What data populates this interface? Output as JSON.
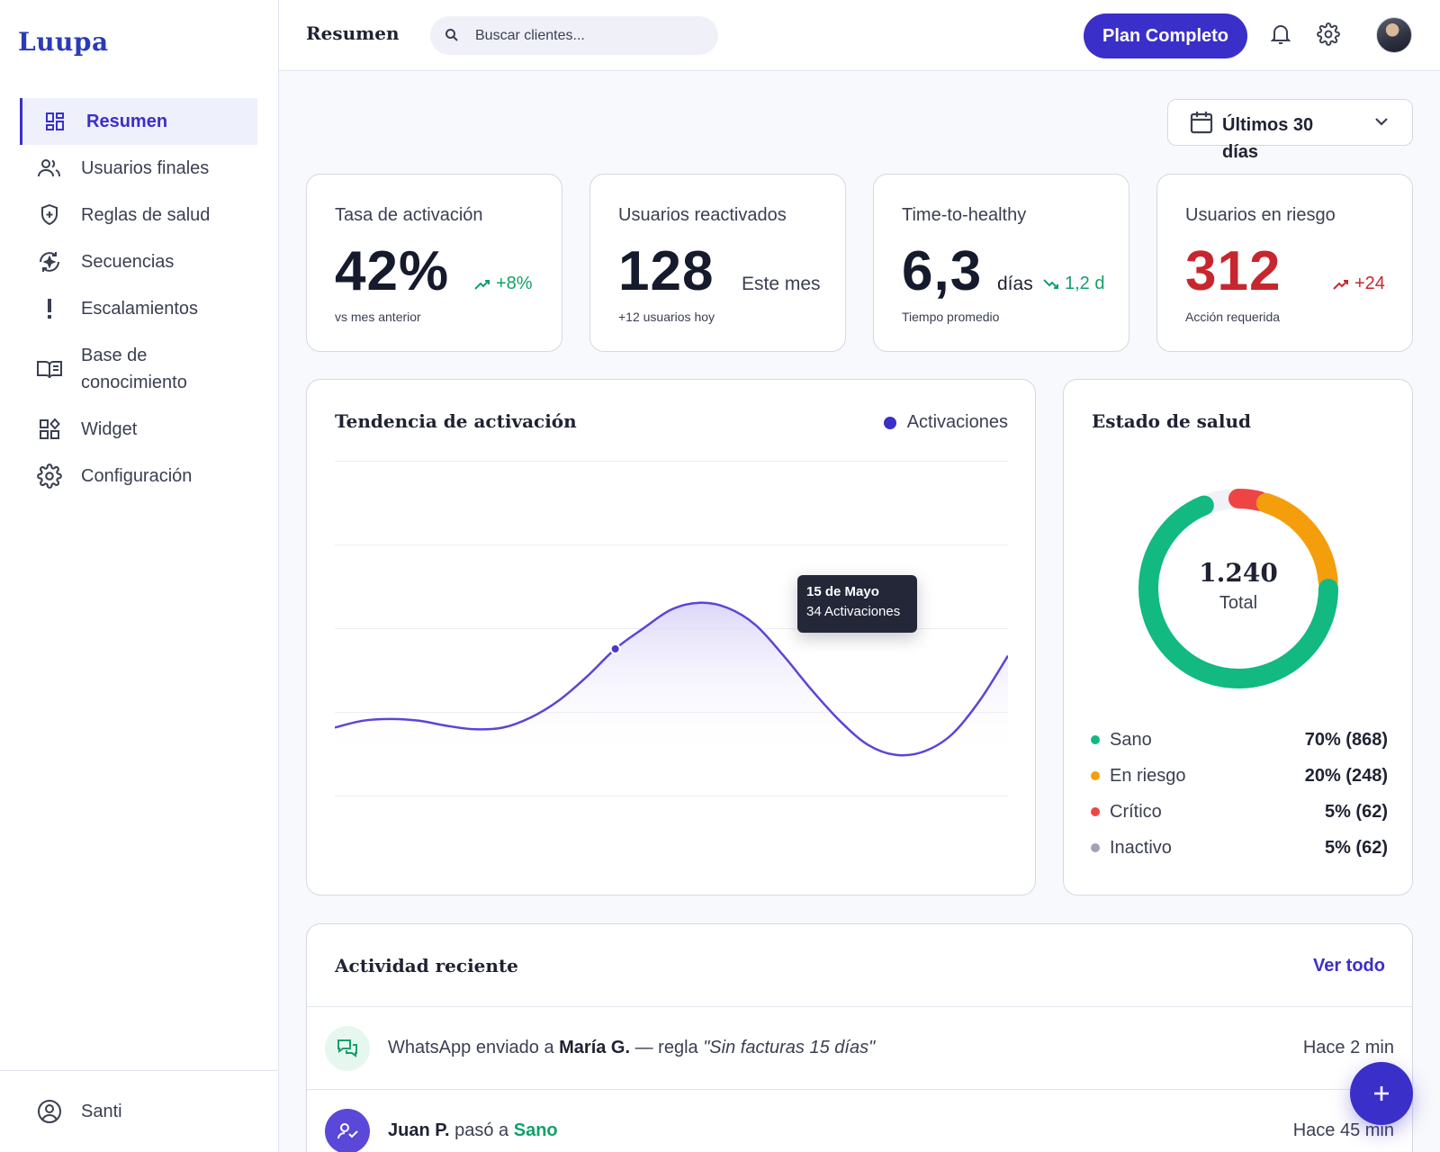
{
  "app": {
    "logo": "Luupa"
  },
  "sidebar": {
    "items": [
      {
        "label": "Resumen",
        "icon": "dashboard-icon",
        "active": true
      },
      {
        "label": "Usuarios finales",
        "icon": "users-icon"
      },
      {
        "label": "Reglas de salud",
        "icon": "shield-icon"
      },
      {
        "label": "Secuencias",
        "icon": "sequence-icon"
      },
      {
        "label": "Escalamientos",
        "icon": "exclamation-icon"
      },
      {
        "label": "Base de conocimiento",
        "icon": "book-icon"
      },
      {
        "label": "Widget",
        "icon": "widget-icon"
      },
      {
        "label": "Configuración",
        "icon": "gear-icon"
      }
    ],
    "user": {
      "name": "Santi",
      "icon": "user-circle-icon"
    }
  },
  "header": {
    "title": "Resumen",
    "search_placeholder": "Buscar clientes...",
    "plan_button": "Plan Completo",
    "icons": [
      "bell-icon",
      "gear-icon",
      "avatar"
    ]
  },
  "date_filter": {
    "label": "Últimos 30 días"
  },
  "kpis": [
    {
      "title": "Tasa de activación",
      "value": "42%",
      "delta": "+8%",
      "delta_trend": "up",
      "sub": "vs mes anterior"
    },
    {
      "title": "Usuarios reactivados",
      "value": "128",
      "unit": "Este mes",
      "sub": "+12 usuarios hoy"
    },
    {
      "title": "Time-to-healthy",
      "value": "6,3",
      "unit": "días",
      "delta": "1,2 d",
      "delta_trend": "down",
      "sub": "Tiempo promedio"
    },
    {
      "title": "Usuarios en riesgo",
      "value": "312",
      "delta": "+24",
      "delta_trend": "up",
      "sub": "Acción requerida"
    }
  ],
  "trend": {
    "title": "Tendencia de activación",
    "legend": "Activaciones",
    "tooltip": {
      "date": "15 de Mayo",
      "value": "34 Activaciones"
    }
  },
  "chart_data": {
    "type": "area",
    "title": "Tendencia de activación",
    "series": [
      {
        "name": "Activaciones",
        "values": [
          0.22,
          0.24,
          0.245,
          0.24,
          0.225,
          0.215,
          0.22,
          0.25,
          0.3,
          0.37,
          0.45,
          0.51,
          0.565,
          0.585,
          0.57,
          0.52,
          0.43,
          0.33,
          0.24,
          0.17,
          0.14,
          0.15,
          0.2,
          0.3,
          0.43
        ]
      }
    ],
    "y_relative": true,
    "highlight": {
      "index": 10,
      "date": "15 de Mayo",
      "value": 34
    },
    "grid": true,
    "legend_position": "top-right",
    "colors": {
      "line": "#5b45d6",
      "fill": "#e9e6fb"
    }
  },
  "health": {
    "title": "Estado de salud",
    "total": "1.240",
    "total_label": "Total",
    "segments": [
      {
        "label": "Sano",
        "value": "70% (868)",
        "pct": 70,
        "color": "#12b981"
      },
      {
        "label": "En riesgo",
        "value": "20% (248)",
        "pct": 20,
        "color": "#f59e0b"
      },
      {
        "label": "Crítico",
        "value": "5% (62)",
        "pct": 5,
        "color": "#ef4444"
      },
      {
        "label": "Inactivo",
        "value": "5% (62)",
        "pct": 5,
        "color": "#a1a3b3"
      }
    ]
  },
  "activity": {
    "title": "Actividad reciente",
    "see_all": "Ver todo",
    "items": [
      {
        "prefix": "WhatsApp enviado a ",
        "subject": "María G.",
        "middle": " — regla ",
        "rule": "\"Sin facturas 15 días\"",
        "time": "Hace 2 min",
        "icon": "chat-icon"
      },
      {
        "subject": "Juan P.",
        "middle": " pasó a ",
        "state": "Sano",
        "time": "Hace 45 min",
        "icon": "user-check-icon"
      }
    ]
  },
  "colors": {
    "accent": "#3b2fc9",
    "positive": "#12a06a",
    "negative": "#c8262e"
  }
}
